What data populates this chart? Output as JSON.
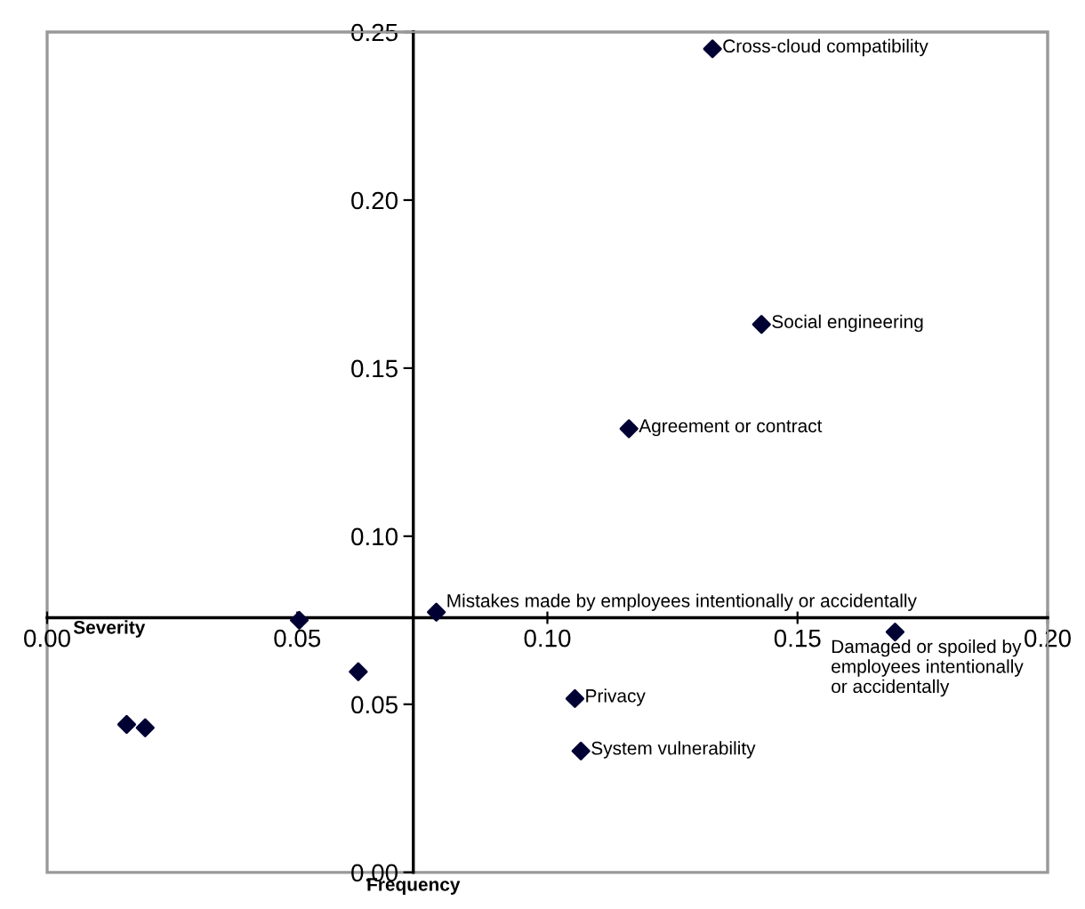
{
  "chart_data": {
    "type": "scatter",
    "xlabel": "Frequency",
    "ylabel": "Severity",
    "x": [
      0.133,
      0.1428,
      0.1163,
      0.0778,
      0.0504,
      0.1695,
      0.0622,
      0.1055,
      0.1067,
      0.0159,
      0.0196
    ],
    "series": [
      {
        "color": "#000033",
        "values": [
          0.245,
          0.163,
          0.132,
          0.0774,
          0.075,
          0.0715,
          0.0597,
          0.0517,
          0.0361,
          0.044,
          0.043
        ]
      }
    ],
    "marker": "diamond",
    "grid": false,
    "legend": false,
    "xlim": [
      0,
      0.2
    ],
    "ylim": [
      0,
      0.25
    ],
    "xticks": [
      {
        "value": 0,
        "label": "0.00"
      },
      {
        "value": 0.05,
        "label": "0.05"
      },
      {
        "value": 0.1,
        "label": "0.10"
      },
      {
        "value": 0.15,
        "label": "0.15"
      },
      {
        "value": 0.2,
        "label": "0.20"
      }
    ],
    "yticks": [
      {
        "value": 0,
        "label": "0.00"
      },
      {
        "value": 0.05,
        "label": "0.05"
      },
      {
        "value": 0.1,
        "label": "0.10"
      },
      {
        "value": 0.15,
        "label": "0.15"
      },
      {
        "value": 0.2,
        "label": "0.20"
      },
      {
        "value": 0.25,
        "label": "0.25"
      }
    ],
    "annotations": [
      {
        "text": "Cross-cloud compatibility",
        "x": 0.133,
        "y": 0.245
      },
      {
        "text": "Social engineering",
        "x": 0.1428,
        "y": 0.163
      },
      {
        "text": "Agreement or contract",
        "x": 0.1163,
        "y": 0.132
      },
      {
        "text": "Mistakes made by employees intentionally or accidentally",
        "x": 0.0778,
        "y": 0.0774
      },
      {
        "text": "Damaged or spoiled by\nemployees intentionally\nor accidentally",
        "x": 0.1695,
        "y": 0.0715
      },
      {
        "text": "Privacy",
        "x": 0.1055,
        "y": 0.0517
      },
      {
        "text": "System vulnerability",
        "x": 0.1067,
        "y": 0.0361
      }
    ]
  }
}
